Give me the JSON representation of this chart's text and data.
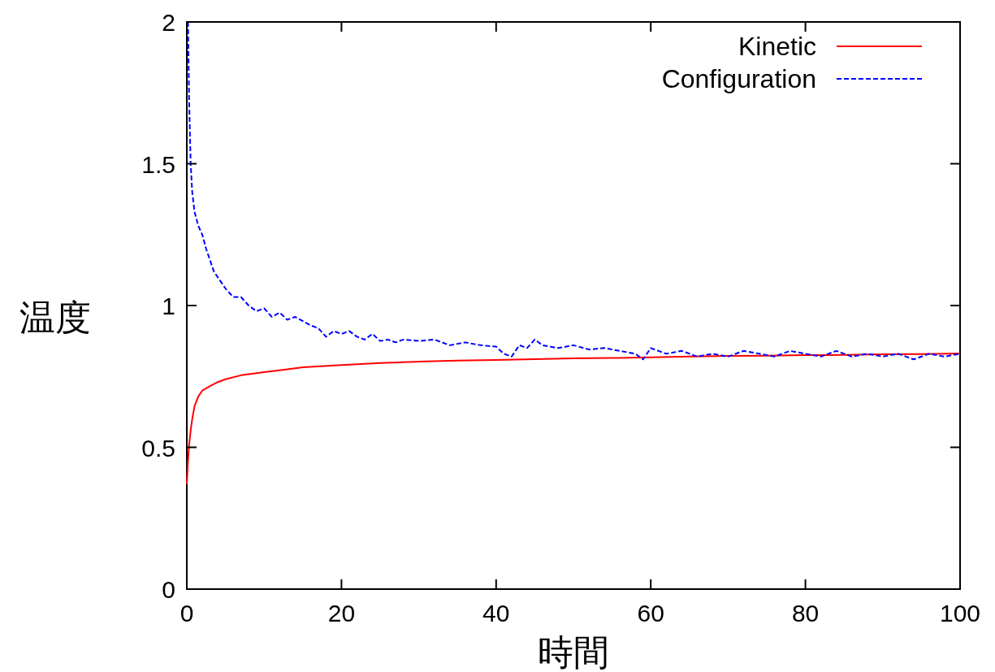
{
  "chart_data": {
    "type": "line",
    "xlabel": "時間",
    "ylabel": "温度",
    "xlim": [
      0,
      100
    ],
    "ylim": [
      0,
      2
    ],
    "xticks": [
      0,
      20,
      40,
      60,
      80,
      100
    ],
    "yticks": [
      0,
      {
        "value": 0.5,
        "label": "0.5"
      },
      1,
      {
        "value": 1.5,
        "label": "1.5"
      },
      2
    ],
    "legend": "top right",
    "grid": false,
    "series": [
      {
        "name": "Kinetic",
        "color": "#ff0000",
        "line_style": "solid",
        "x": [
          0,
          0.15,
          0.3,
          0.5,
          0.7,
          1,
          1.5,
          2,
          3,
          4,
          5,
          7,
          10,
          13,
          15,
          20,
          25,
          30,
          35,
          40,
          45,
          50,
          55,
          60,
          65,
          70,
          75,
          80,
          85,
          90,
          95,
          100
        ],
        "values": [
          0.37,
          0.45,
          0.51,
          0.56,
          0.6,
          0.645,
          0.68,
          0.7,
          0.716,
          0.73,
          0.74,
          0.754,
          0.765,
          0.775,
          0.782,
          0.79,
          0.797,
          0.802,
          0.806,
          0.808,
          0.811,
          0.814,
          0.815,
          0.817,
          0.82,
          0.822,
          0.823,
          0.825,
          0.826,
          0.828,
          0.829,
          0.831
        ]
      },
      {
        "name": "Configuration",
        "color": "#0000ff",
        "line_style": "dashed",
        "x": [
          0.15,
          0.3,
          0.5,
          0.7,
          1,
          1.5,
          2,
          2.5,
          3,
          3.5,
          4,
          5,
          6,
          7,
          8,
          9,
          10,
          11,
          12,
          13,
          14,
          15,
          16,
          17,
          18,
          19,
          20,
          21,
          22,
          23,
          24,
          25,
          26,
          27,
          28,
          30,
          32,
          34,
          36,
          38,
          40,
          41,
          42,
          43,
          44,
          45,
          46,
          48,
          50,
          52,
          54,
          56,
          58,
          59,
          60,
          62,
          64,
          66,
          68,
          70,
          72,
          74,
          76,
          78,
          80,
          82,
          84,
          86,
          88,
          90,
          92,
          94,
          96,
          98,
          100
        ],
        "values": [
          2,
          1.72,
          1.5,
          1.4,
          1.33,
          1.28,
          1.25,
          1.2,
          1.16,
          1.12,
          1.1,
          1.06,
          1.03,
          1.03,
          1.0,
          0.98,
          0.99,
          0.96,
          0.975,
          0.95,
          0.96,
          0.945,
          0.93,
          0.92,
          0.89,
          0.91,
          0.9,
          0.91,
          0.89,
          0.88,
          0.9,
          0.875,
          0.88,
          0.87,
          0.88,
          0.875,
          0.88,
          0.86,
          0.87,
          0.86,
          0.855,
          0.83,
          0.82,
          0.86,
          0.85,
          0.88,
          0.86,
          0.85,
          0.86,
          0.845,
          0.85,
          0.84,
          0.83,
          0.81,
          0.85,
          0.83,
          0.84,
          0.82,
          0.83,
          0.82,
          0.84,
          0.83,
          0.82,
          0.84,
          0.83,
          0.82,
          0.84,
          0.82,
          0.83,
          0.82,
          0.83,
          0.81,
          0.83,
          0.82,
          0.83
        ]
      }
    ]
  }
}
